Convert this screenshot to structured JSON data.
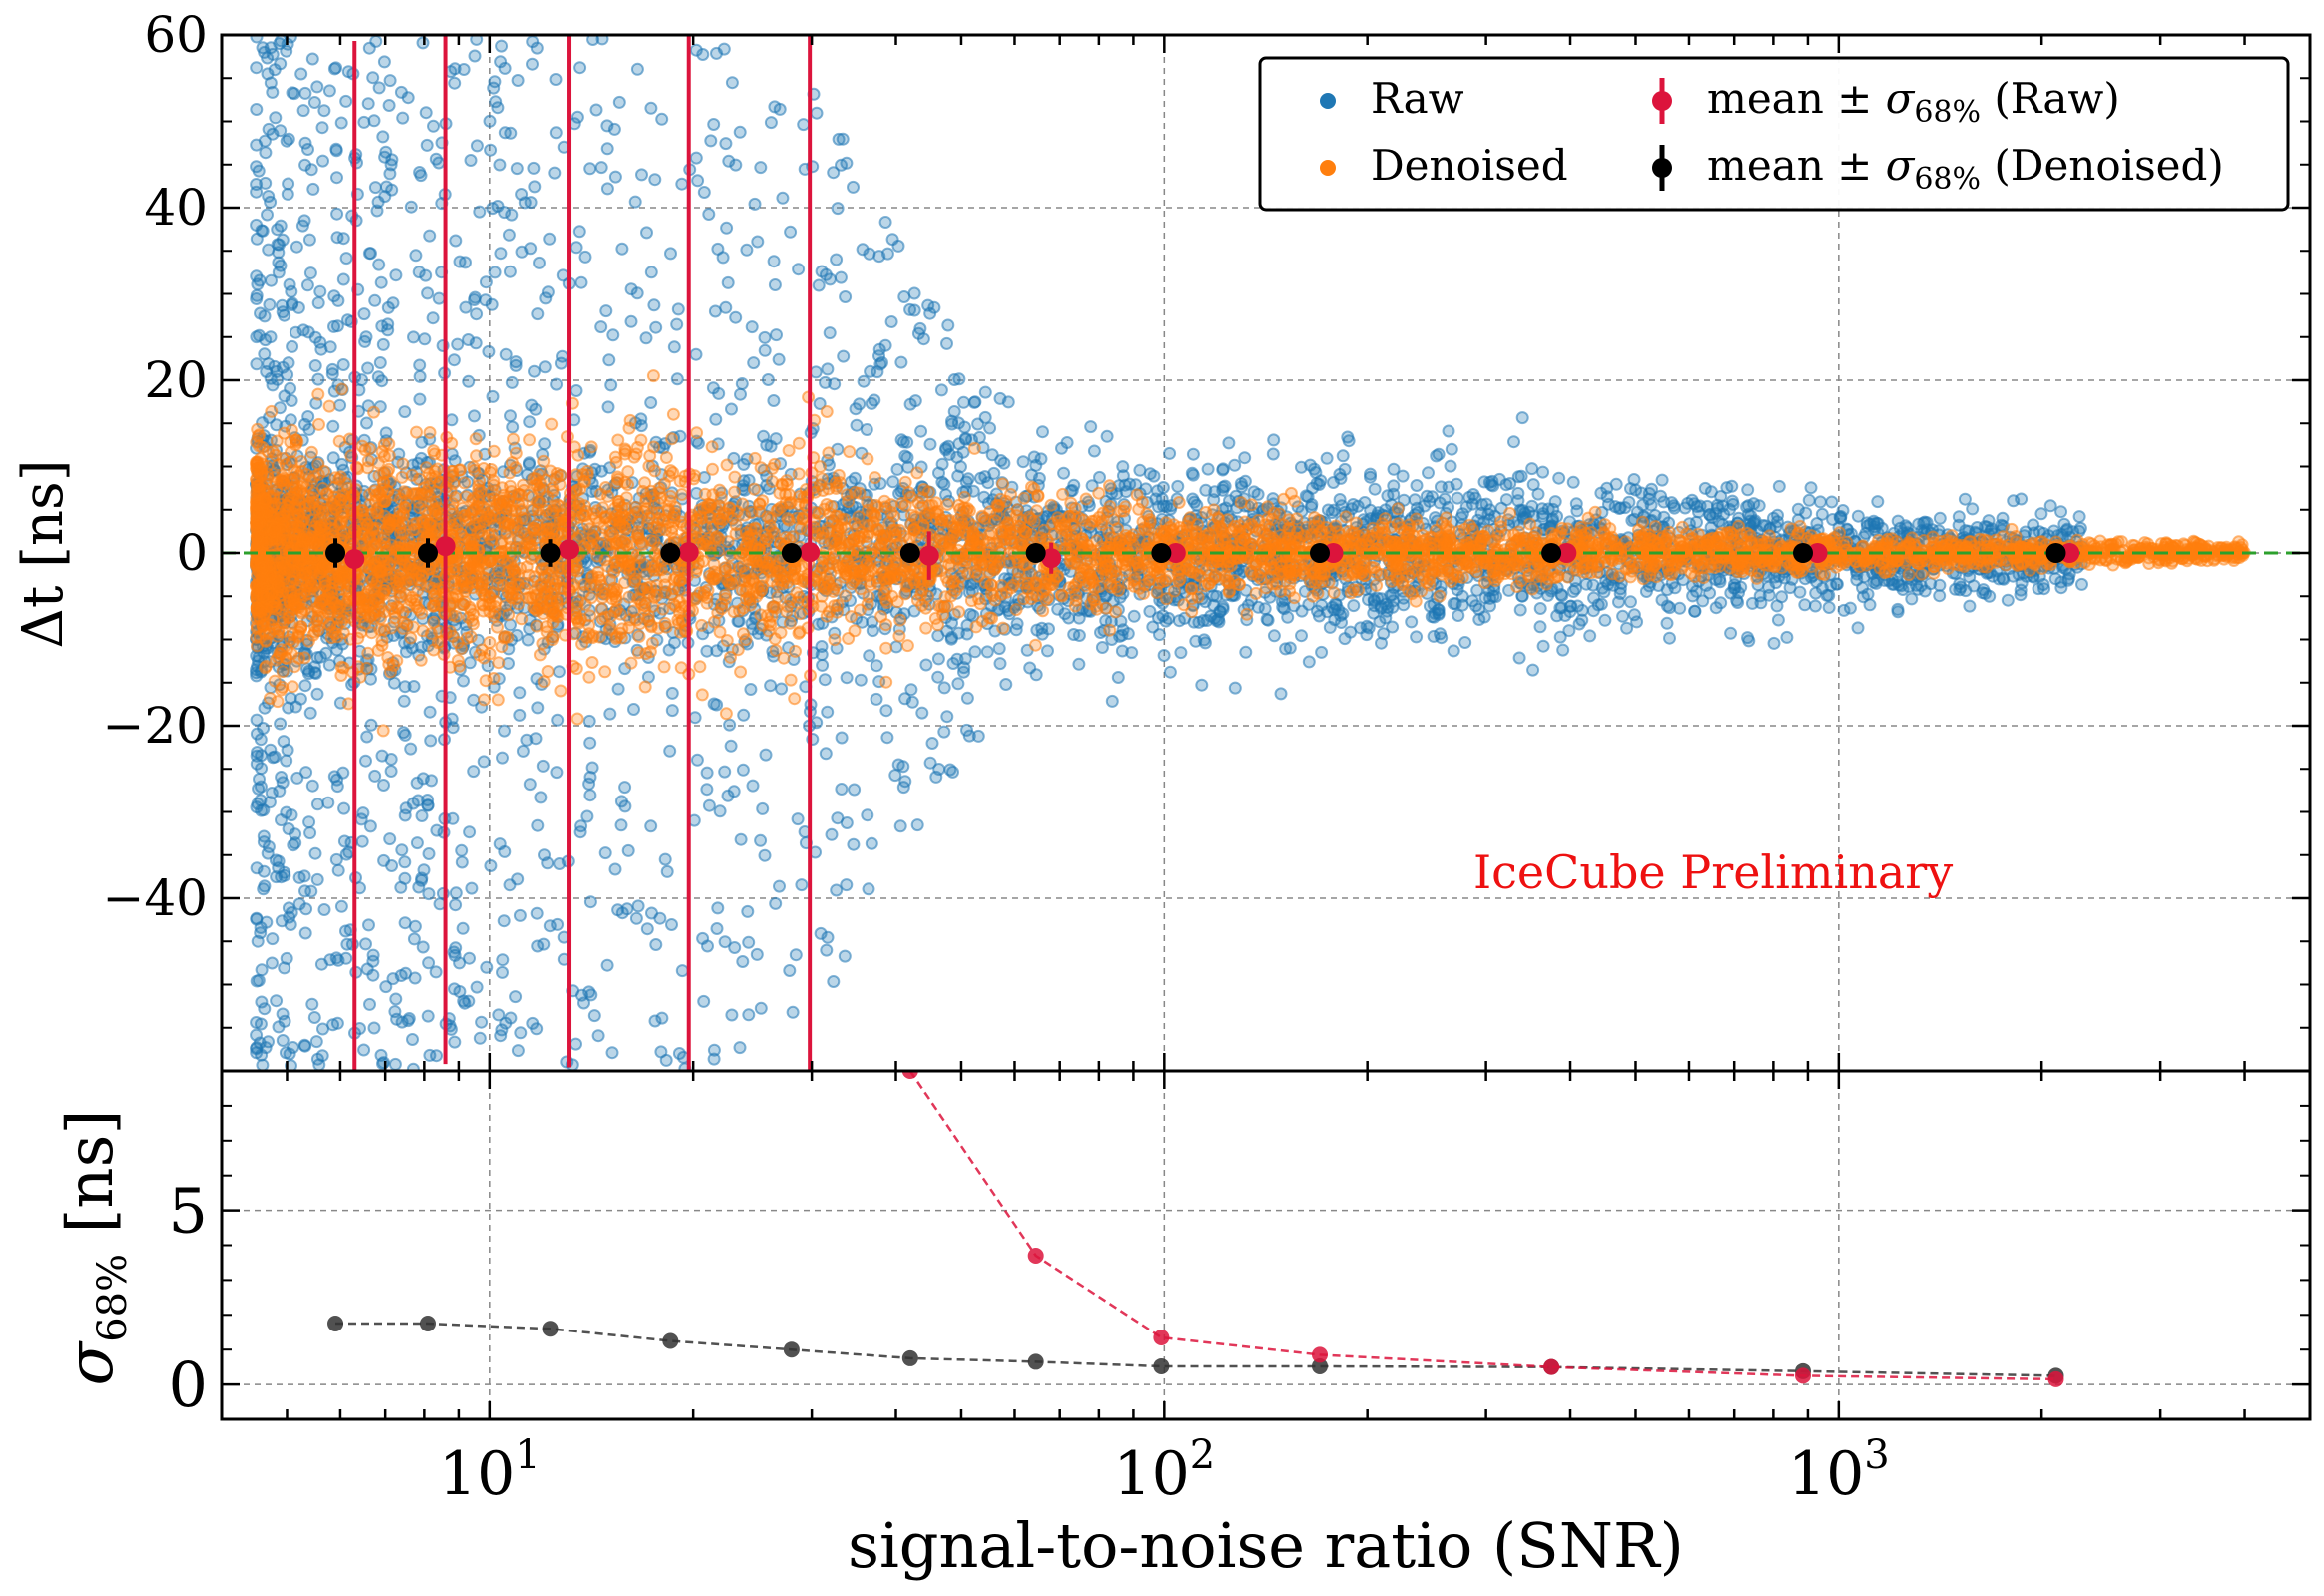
{
  "chart_data": [
    {
      "type": "scatter",
      "panel": "top",
      "xlabel": "",
      "ylabel": "Δt [ns]",
      "xscale": "log",
      "xlim": [
        4.0,
        5000
      ],
      "ylim": [
        -60,
        60
      ],
      "y_ticks": [
        60,
        40,
        20,
        0,
        -20,
        -40
      ],
      "y_tick_labels": [
        "60",
        "40",
        "20",
        "0",
        "−20",
        "−40"
      ],
      "grid": true,
      "reference_line": {
        "y": 0,
        "style": "dashed",
        "color": "#2ca02c"
      },
      "annotation": "IceCube Preliminary",
      "legend": {
        "placement": "top-right",
        "entries": [
          {
            "label": "Raw",
            "marker": "dot",
            "color": "#1f77b4"
          },
          {
            "label": "Denoised",
            "marker": "dot",
            "color": "#ff7f0e"
          },
          {
            "label_prefix": "mean ± ",
            "label_sigma": "σ",
            "label_sub": "68%",
            "label_suffix": " (Raw)",
            "marker": "errorbar",
            "color": "#dc143c"
          },
          {
            "label_prefix": "mean ± ",
            "label_sigma": "σ",
            "label_sub": "68%",
            "label_suffix": " (Denoised)",
            "marker": "errorbar",
            "color": "#000000"
          }
        ]
      },
      "series": [
        {
          "name": "Raw",
          "kind": "scatter-cloud",
          "color": "#1f77b4",
          "x_range": [
            4.5,
            2300
          ],
          "spread_profile": [
            {
              "snr": 5,
              "spread": 60
            },
            {
              "snr": 10,
              "spread": 60
            },
            {
              "snr": 20,
              "spread": 60
            },
            {
              "snr": 30,
              "spread": 55
            },
            {
              "snr": 45,
              "spread": 30
            },
            {
              "snr": 70,
              "spread": 8
            },
            {
              "snr": 100,
              "spread": 7
            },
            {
              "snr": 300,
              "spread": 5
            },
            {
              "snr": 1000,
              "spread": 3
            },
            {
              "snr": 2300,
              "spread": 2
            }
          ]
        },
        {
          "name": "Denoised",
          "kind": "scatter-cloud",
          "color": "#ff7f0e",
          "x_range": [
            4.5,
            4000
          ],
          "spread_profile": [
            {
              "snr": 5,
              "spread": 12
            },
            {
              "snr": 20,
              "spread": 12
            },
            {
              "snr": 50,
              "spread": 8
            },
            {
              "snr": 100,
              "spread": 5
            },
            {
              "snr": 1000,
              "spread": 2
            },
            {
              "snr": 4000,
              "spread": 1
            }
          ]
        },
        {
          "name": "mean ± σ68% (Raw)",
          "kind": "errorbar",
          "color": "#dc143c",
          "x": [
            6.3,
            8.6,
            13.1,
            19.7,
            29.8,
            44.8,
            68.0,
            104,
            178,
            395,
            930,
            2200
          ],
          "y": [
            -0.7,
            0.8,
            0.4,
            0.1,
            0.1,
            -0.3,
            -0.6,
            0.0,
            0.0,
            0.0,
            0.0,
            0.0
          ],
          "yerr": [
            60,
            60,
            60,
            60,
            60,
            2.8,
            1.8,
            0.6,
            0.4,
            0.3,
            0.2,
            0.1
          ]
        },
        {
          "name": "mean ± σ68% (Denoised)",
          "kind": "errorbar",
          "color": "#000000",
          "x": [
            5.9,
            8.1,
            12.3,
            18.5,
            28.0,
            42.0,
            64.5,
            99.0,
            170,
            375,
            885,
            2100
          ],
          "y": [
            0,
            0,
            0,
            0,
            0,
            0,
            0,
            0,
            0,
            0,
            0,
            0
          ],
          "yerr": [
            1.7,
            1.7,
            1.6,
            1.2,
            1.0,
            0.7,
            0.6,
            0.5,
            0.5,
            0.5,
            0.3,
            0.2
          ]
        }
      ]
    },
    {
      "type": "line",
      "panel": "bottom",
      "xlabel": "signal-to-noise ratio (SNR)",
      "ylabel_sigma": "σ",
      "ylabel_sub": "68%",
      "ylabel_suffix": " [ns]",
      "xscale": "log",
      "xlim": [
        4.0,
        5000
      ],
      "ylim": [
        -1,
        9
      ],
      "y_ticks": [
        0,
        5
      ],
      "y_tick_labels": [
        "0",
        "5"
      ],
      "x_tick_base": "10",
      "x_ticks": [
        10,
        100,
        1000
      ],
      "x_tick_exponents": [
        "1",
        "2",
        "3"
      ],
      "grid": true,
      "series": [
        {
          "name": "Raw",
          "color": "#dc143c",
          "x": [
            42.0,
            64.5,
            99.0,
            170,
            375,
            885,
            2100
          ],
          "y": [
            9.0,
            3.7,
            1.35,
            0.85,
            0.5,
            0.25,
            0.15
          ]
        },
        {
          "name": "Denoised",
          "color": "#333333",
          "x": [
            5.9,
            8.1,
            12.3,
            18.5,
            28.0,
            42.0,
            64.5,
            99.0,
            170,
            375,
            885,
            2100
          ],
          "y": [
            1.75,
            1.75,
            1.6,
            1.25,
            1.0,
            0.75,
            0.65,
            0.52,
            0.52,
            0.5,
            0.38,
            0.25
          ]
        }
      ]
    }
  ]
}
